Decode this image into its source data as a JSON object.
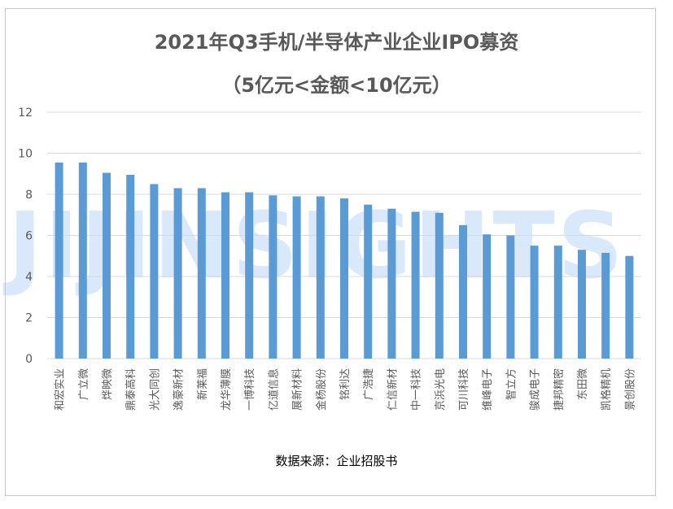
{
  "titles": {
    "line1": "2021年Q3手机/半导体产业企业IPO募资",
    "line2": "（5亿元<金额<10亿元）"
  },
  "source": "数据来源：企业招股书",
  "watermark": "JIJINSIGHTS",
  "colors": {
    "bar": "#5B9BD5",
    "grid": "#d9d9d9",
    "text": "#595959"
  },
  "chart_data": {
    "type": "bar",
    "title": "2021年Q3手机/半导体产业企业IPO募资（5亿元<金额<10亿元）",
    "xlabel": "",
    "ylabel": "",
    "ylim": [
      0,
      12
    ],
    "yticks": [
      0,
      2,
      4,
      6,
      8,
      10,
      12
    ],
    "grid": true,
    "categories": [
      "和宏实业",
      "广立微",
      "烨映微",
      "鼎泰高科",
      "光大同创",
      "逸豪新材",
      "新莱福",
      "龙华薄膜",
      "一博科技",
      "亿道信息",
      "展新材料",
      "金杨股份",
      "铭利达",
      "广浩捷",
      "仁信新材",
      "中一科技",
      "京浜光电",
      "可川科技",
      "维峰电子",
      "智立方",
      "骏成电子",
      "捷邦精密",
      "东田微",
      "凯格精机",
      "景创股份"
    ],
    "values": [
      9.55,
      9.55,
      9.05,
      8.95,
      8.5,
      8.3,
      8.3,
      8.1,
      8.1,
      7.95,
      7.9,
      7.9,
      7.8,
      7.5,
      7.3,
      7.15,
      7.1,
      6.5,
      6.05,
      6.0,
      5.5,
      5.5,
      5.3,
      5.15,
      5.0
    ]
  }
}
